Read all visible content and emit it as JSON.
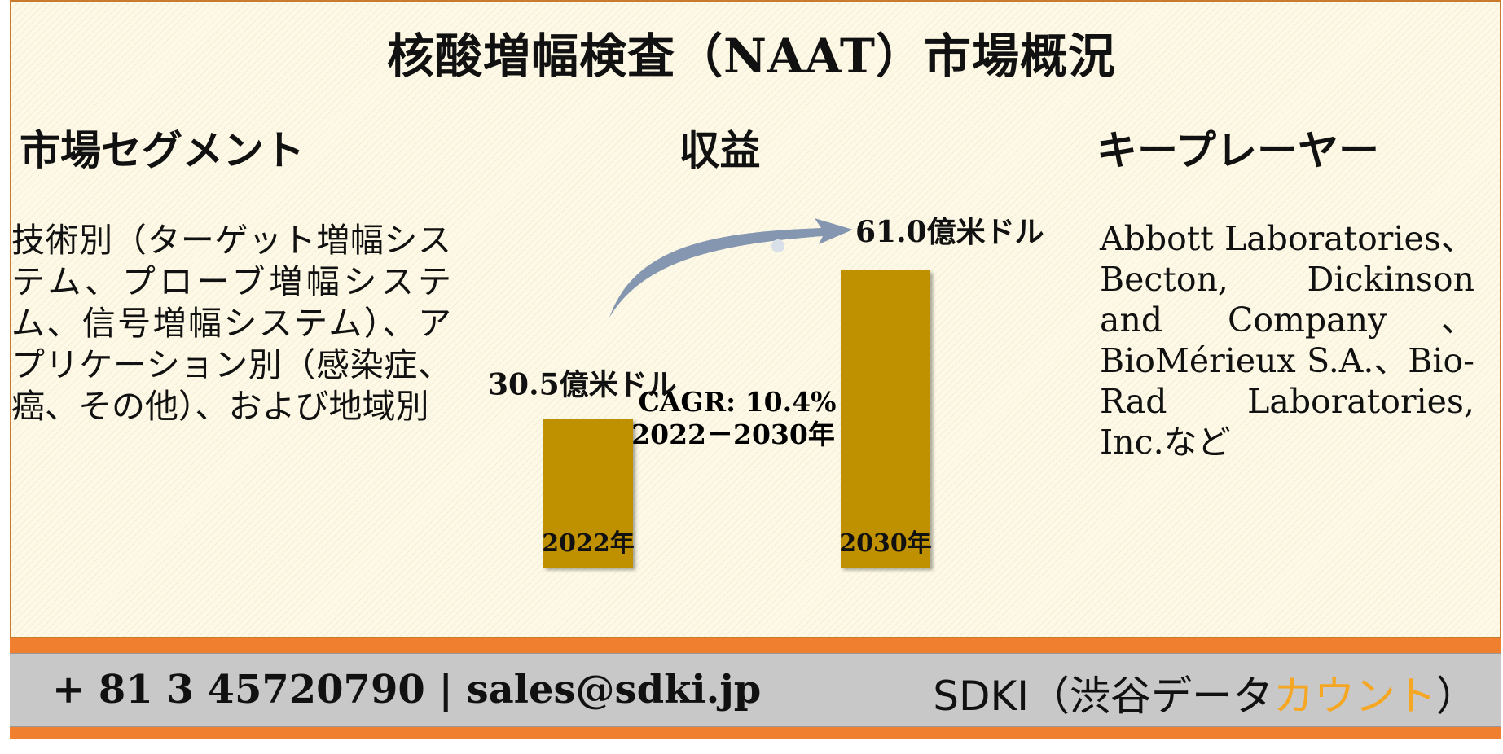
{
  "title": "核酸増幅検査（NAAT）市場概況",
  "sections": {
    "segment": {
      "heading": "市場セグメント",
      "text": "技術別（ターゲット増幅システム、プローブ増幅システム、信号増幅システム）、アプリケーション別（感染症、癌、その他）、および地域別"
    },
    "revenue": {
      "heading": "収益"
    },
    "players": {
      "heading": "キープレーヤー",
      "text": "Abbott Laboratories、Becton, Dickinson and Company、BioMérieux S.A.、Bio-Rad Laboratories, Inc.など"
    }
  },
  "chart_data": {
    "type": "bar",
    "categories": [
      "2022年",
      "2030年"
    ],
    "values": [
      30.5,
      61.0
    ],
    "data_labels": [
      "30.5億米ドル",
      "61.0億米ドル"
    ],
    "unit": "億米ドル",
    "annotation": {
      "line1": "CAGR: 10.4%",
      "line2": "2022－2030年"
    },
    "bar_color": "#bf9000",
    "arrow_color": "#8496b0"
  },
  "footer": {
    "contact": "+ 81 3 45720790 | sales@sdki.jp",
    "brand_main": "SDKI（渋谷データ",
    "brand_accent": "カウント",
    "brand_end": "）"
  }
}
